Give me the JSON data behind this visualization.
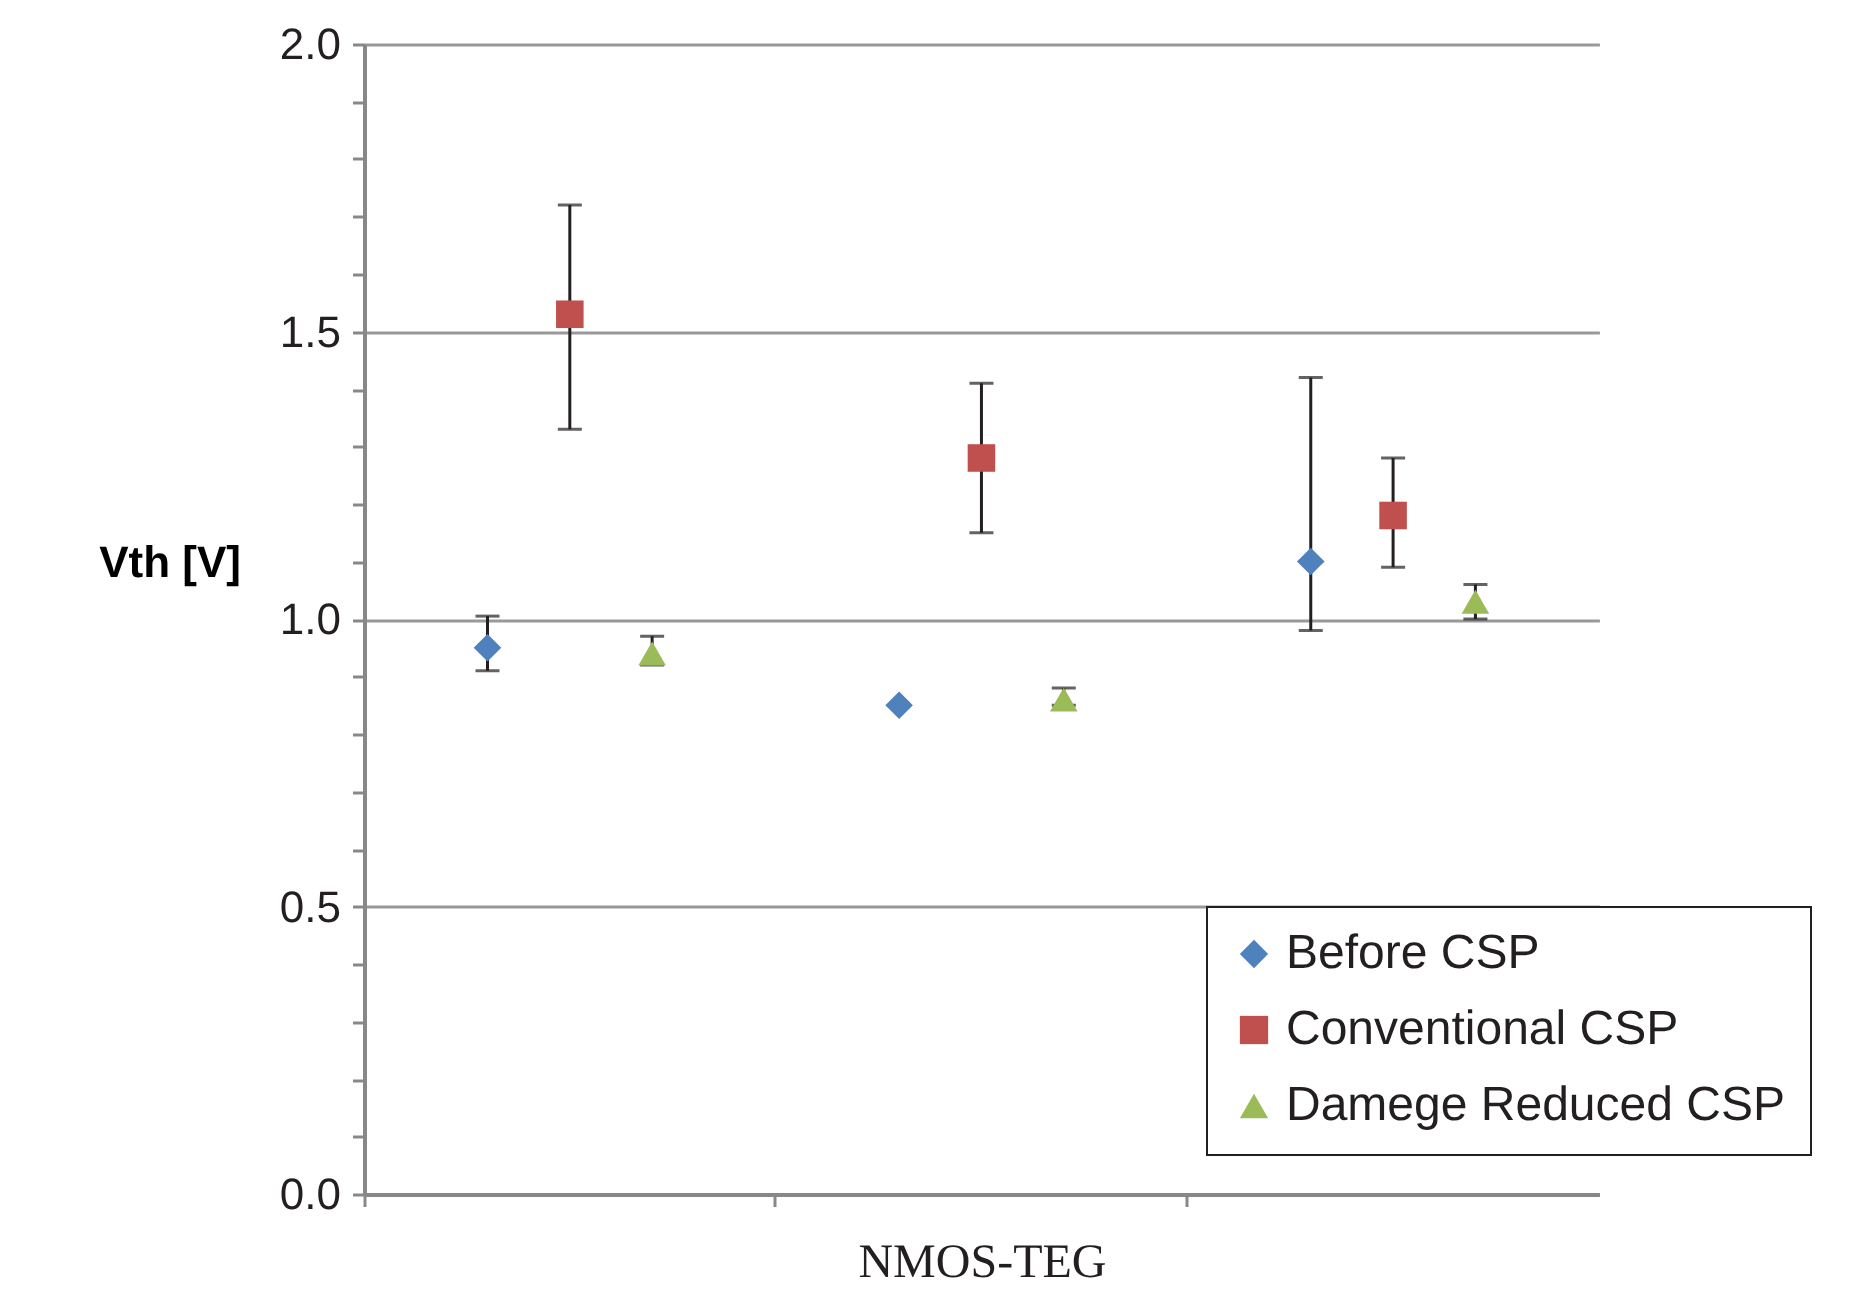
{
  "chart_data": {
    "type": "scatter",
    "xlabel": "NMOS-TEG",
    "ylabel": "Vth [V]",
    "categories": [
      null,
      null,
      null
    ],
    "series": [
      {
        "name": "Before CSP",
        "color": "#4f81bd",
        "marker": "diamond",
        "values": [
          0.95,
          0.85,
          1.1
        ],
        "errors": [
          [
            0.91,
            1.005
          ],
          null,
          [
            0.98,
            1.42
          ]
        ]
      },
      {
        "name": "Conventional CSP",
        "color": "#c0504d",
        "marker": "square",
        "values": [
          1.53,
          1.28,
          1.18
        ],
        "errors": [
          [
            1.33,
            1.72
          ],
          [
            1.15,
            1.41
          ],
          [
            1.09,
            1.28
          ]
        ]
      },
      {
        "name": "Damege Reduced CSP",
        "color": "#9bbb59",
        "marker": "triangle",
        "values": [
          0.94,
          0.86,
          1.03
        ],
        "errors": [
          [
            0.92,
            0.97
          ],
          [
            0.85,
            0.88
          ],
          [
            1.0,
            1.06
          ]
        ]
      }
    ],
    "ylim": [
      0,
      2
    ],
    "yticks": [
      {
        "value": 0,
        "label": "0.0"
      },
      {
        "value": 0.1,
        "label": null
      },
      {
        "value": 0.2,
        "label": null
      },
      {
        "value": 0.3,
        "label": null
      },
      {
        "value": 0.4,
        "label": null
      },
      {
        "value": 0.5,
        "label": "0.5"
      },
      {
        "value": 0.6,
        "label": null
      },
      {
        "value": 0.7,
        "label": null
      },
      {
        "value": 0.8,
        "label": null
      },
      {
        "value": 0.9,
        "label": null
      },
      {
        "value": 1,
        "label": "1.0"
      },
      {
        "value": 1.1,
        "label": null
      },
      {
        "value": 1.2,
        "label": null
      },
      {
        "value": 1.3,
        "label": null
      },
      {
        "value": 1.4,
        "label": null
      },
      {
        "value": 1.5,
        "label": "1.5"
      },
      {
        "value": 1.6,
        "label": null
      },
      {
        "value": 1.7,
        "label": null
      },
      {
        "value": 1.8,
        "label": null
      },
      {
        "value": 1.9,
        "label": null
      },
      {
        "value": 2,
        "label": "2.0"
      }
    ],
    "grid": "y",
    "legend": "bottom right"
  }
}
